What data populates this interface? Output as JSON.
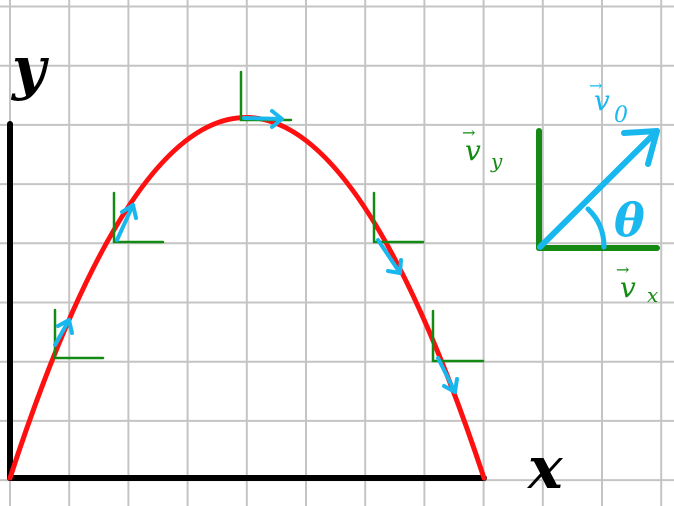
{
  "colors": {
    "grid": "#c4c4c4",
    "axes": "#000000",
    "trajectory": "#ff1010",
    "velocity": "#18b8ee",
    "components": "#148a14",
    "background": "#ffffff"
  },
  "labels": {
    "y_axis": "y",
    "x_axis": "x",
    "v0": "v",
    "v0_sub": "0",
    "vy": "v",
    "vy_sub": "y",
    "vx": "v",
    "vx_sub": "x",
    "theta": "θ"
  },
  "icons": {
    "vector_arrow": "→"
  }
}
